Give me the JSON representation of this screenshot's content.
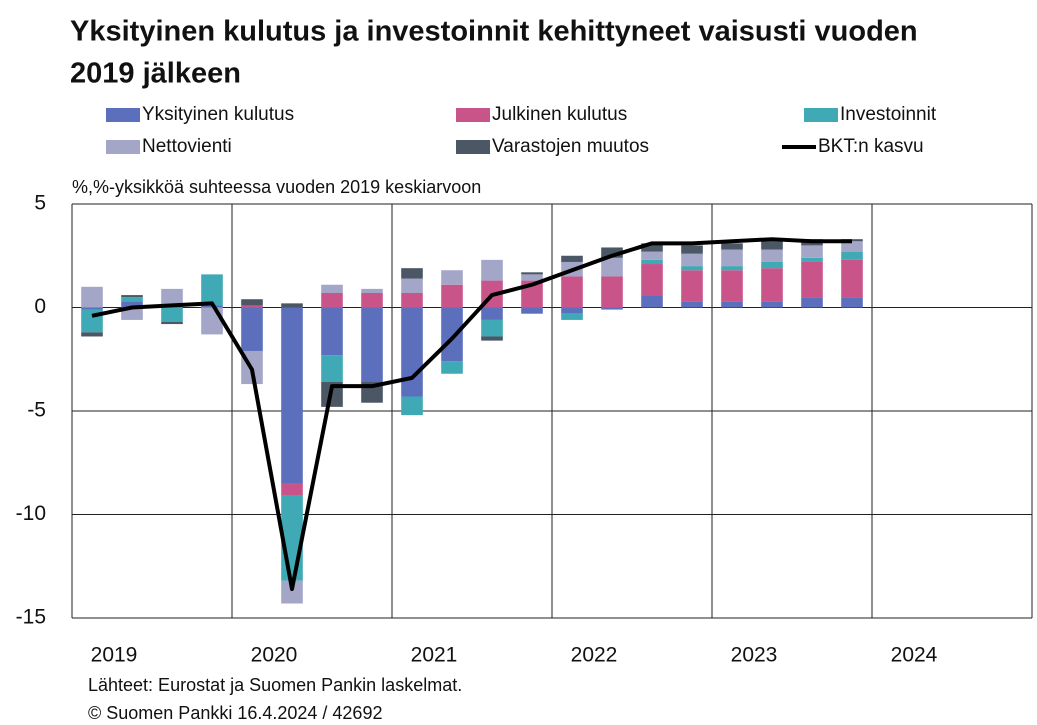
{
  "chart_data": {
    "type": "stacked_bar_line",
    "title_lines": [
      "Yksityinen kulutus ja investoinnit kehittyneet vaisusti vuoden",
      "2019 jälkeen"
    ],
    "y_axis_label": "%,%-yksikköä suhteessa vuoden 2019 keskiarvoon",
    "groups": [
      "2019",
      "2020",
      "2021",
      "2022",
      "2023",
      "2024"
    ],
    "ylim": [
      -15,
      5
    ],
    "yticks": [
      -15,
      -10,
      -5,
      0,
      5
    ],
    "grid": true,
    "series": [
      {
        "name": "Yksityinen kulutus",
        "color": "#5b6fbd",
        "kind": "bar",
        "values": [
          -0.1,
          0.3,
          0.1,
          0.1,
          -2.1,
          -8.5,
          -2.3,
          -3.6,
          -4.3,
          -2.6,
          -0.6,
          -0.3,
          -0.3,
          -0.1,
          0.6,
          0.3,
          0.3,
          0.3,
          0.5,
          0.5,
          null,
          null,
          null,
          null
        ]
      },
      {
        "name": "Julkinen kulutus",
        "color": "#c9548a",
        "kind": "bar",
        "values": [
          0,
          0,
          0,
          0,
          0.1,
          -0.6,
          0.7,
          0.7,
          0.7,
          1.1,
          1.3,
          1.3,
          1.5,
          1.5,
          1.5,
          1.5,
          1.5,
          1.6,
          1.7,
          1.8,
          null,
          null,
          null,
          null
        ]
      },
      {
        "name": "Investoinnit",
        "color": "#3fa9b5",
        "kind": "bar",
        "values": [
          -1.1,
          0.2,
          -0.7,
          1.5,
          0,
          -4.1,
          -1.3,
          0,
          -0.9,
          -0.6,
          -0.8,
          0,
          -0.3,
          0,
          0.2,
          0.2,
          0.2,
          0.3,
          0.2,
          0.4,
          null,
          null,
          null,
          null
        ]
      },
      {
        "name": "Nettovienti",
        "color": "#a3a6c7",
        "kind": "bar",
        "values": [
          1.0,
          -0.6,
          0.8,
          -1.3,
          -1.6,
          -1.1,
          0.4,
          0.2,
          0.7,
          0.7,
          1.0,
          0.3,
          0.7,
          0.9,
          0.4,
          0.6,
          0.8,
          0.6,
          0.6,
          0.5,
          null,
          null,
          null,
          null
        ]
      },
      {
        "name": "Varastojen muutos",
        "color": "#4b5765",
        "kind": "bar",
        "values": [
          -0.2,
          0.1,
          -0.1,
          0,
          0.3,
          0.2,
          -1.2,
          -1.0,
          0.5,
          0,
          -0.2,
          0.1,
          0.3,
          0.5,
          0.4,
          0.4,
          0.3,
          0.5,
          0.3,
          0.1,
          null,
          null,
          null,
          null
        ]
      },
      {
        "name": "BKT:n kasvu",
        "color": "#000000",
        "kind": "line",
        "values": [
          -0.4,
          0.0,
          0.1,
          0.2,
          -3.0,
          -13.6,
          -3.8,
          -3.8,
          -3.4,
          -1.5,
          0.6,
          1.1,
          1.8,
          2.5,
          3.1,
          3.1,
          3.2,
          3.3,
          3.2,
          3.2,
          null,
          null,
          null,
          null
        ]
      }
    ],
    "footer": [
      "Lähteet: Eurostat ja Suomen Pankin laskelmat.",
      "© Suomen Pankki 16.4.2024 / 42692"
    ]
  }
}
